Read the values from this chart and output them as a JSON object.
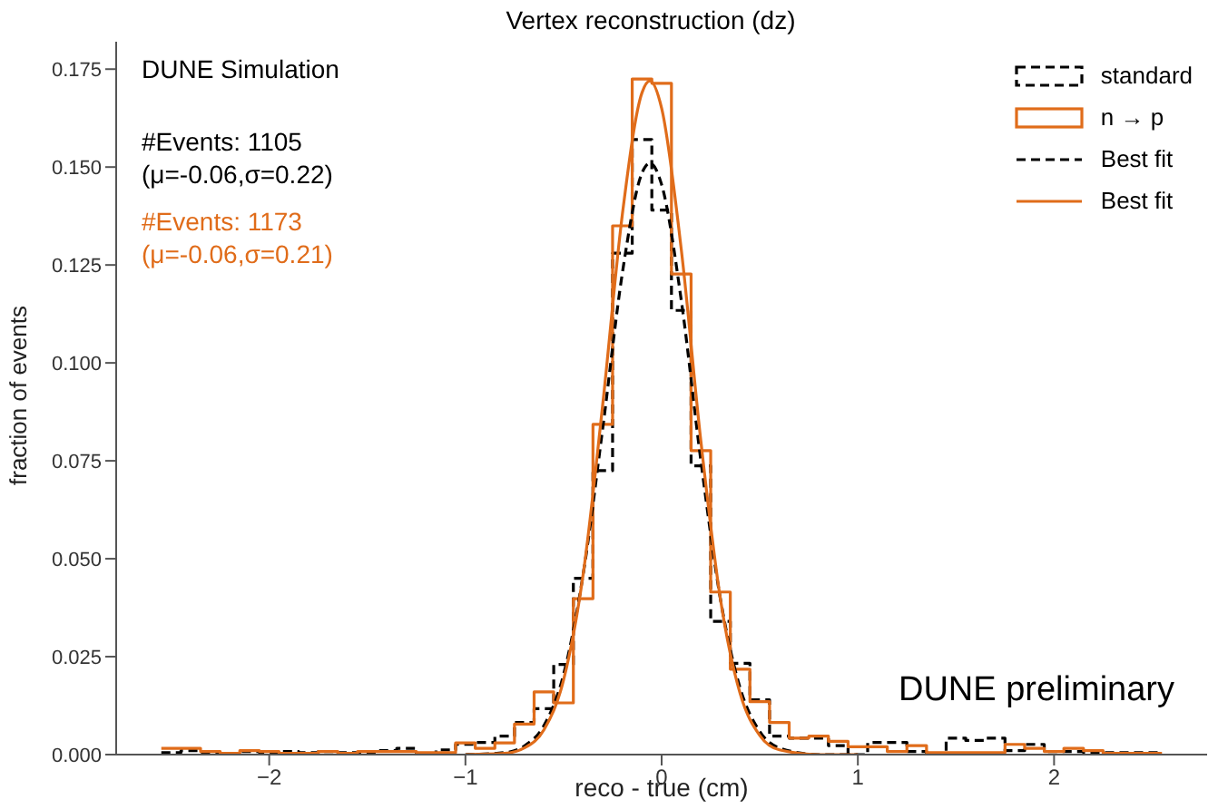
{
  "chart_data": {
    "type": "histogram",
    "title": "Vertex reconstruction (dz)",
    "xlabel": "reco - true (cm)",
    "ylabel": "fraction of events",
    "bins": [
      -2.55,
      -2.45,
      -2.35,
      -2.25,
      -2.15,
      -2.05,
      -1.95,
      -1.85,
      -1.75,
      -1.65,
      -1.55,
      -1.45,
      -1.35,
      -1.25,
      -1.15,
      -1.05,
      -0.95,
      -0.85,
      -0.75,
      -0.65,
      -0.55,
      -0.45,
      -0.35,
      -0.25,
      -0.15,
      -0.05,
      0.05,
      0.15,
      0.25,
      0.35,
      0.45,
      0.55,
      0.65,
      0.75,
      0.85,
      0.95,
      1.05,
      1.15,
      1.25,
      1.35,
      1.45,
      1.55,
      1.65,
      1.75,
      1.85,
      1.95,
      2.05,
      2.15,
      2.25,
      2.35,
      2.45,
      2.55
    ],
    "series": [
      {
        "name": "standard",
        "color": "#000000",
        "line_style": "dashed",
        "values": [
          0.0005,
          0.001,
          0.0005,
          0.0003,
          0.0008,
          0.0005,
          0.0008,
          0.0005,
          0.0008,
          0.0005,
          0.0005,
          0.001,
          0.0016,
          0.0003,
          0.0012,
          0.0026,
          0.0031,
          0.0047,
          0.0082,
          0.0117,
          0.023,
          0.045,
          0.0725,
          0.128,
          0.157,
          0.139,
          0.1134,
          0.0737,
          0.034,
          0.0233,
          0.014,
          0.0047,
          0.0042,
          0.0042,
          0.0023,
          0,
          0.0031,
          0.0031,
          0.0008,
          0.0003,
          0.0042,
          0.0036,
          0.0042,
          0.001,
          0.0026,
          0.0008,
          0.0008,
          0.0005,
          0.0005,
          0.0005,
          0.0005
        ]
      },
      {
        "name": "n → p",
        "color": "#e06c1a",
        "line_style": "solid",
        "values": [
          0.0016,
          0.0016,
          0.0008,
          0.0003,
          0.001,
          0.0008,
          0.0003,
          0.0003,
          0.0008,
          0.0003,
          0.0008,
          0.0008,
          0.0008,
          0.0005,
          0.0005,
          0.003,
          0.0016,
          0.003,
          0.0078,
          0.016,
          0.0132,
          0.0398,
          0.0843,
          0.135,
          0.1725,
          0.1714,
          0.1227,
          0.0776,
          0.0415,
          0.0218,
          0.0135,
          0.0082,
          0.0042,
          0.0047,
          0.0034,
          0.002,
          0.002,
          0.0008,
          0.0023,
          0.0005,
          0.0005,
          0.0005,
          0.0005,
          0.0026,
          0.0016,
          0.0008,
          0.0016,
          0.001,
          0.0003,
          0.0003,
          0.0003
        ]
      },
      {
        "name": "Best fit",
        "type": "line",
        "color": "#000000",
        "line_style": "dashed",
        "x": [
          -1.0,
          -0.8,
          -0.7,
          -0.6,
          -0.5,
          -0.4,
          -0.3,
          -0.2,
          -0.1,
          -0.06,
          0,
          0.1,
          0.2,
          0.3,
          0.4,
          0.5,
          0.6,
          0.8,
          1.0
        ],
        "values": [
          0,
          0.0005,
          0.0022,
          0.0074,
          0.0204,
          0.046,
          0.0834,
          0.123,
          0.1485,
          0.151,
          0.1455,
          0.116,
          0.075,
          0.0396,
          0.017,
          0.0059,
          0.0017,
          0,
          0
        ]
      },
      {
        "name": "Best fit",
        "type": "line",
        "color": "#e06c1a",
        "line_style": "solid",
        "x": [
          -1.0,
          -0.8,
          -0.7,
          -0.6,
          -0.5,
          -0.4,
          -0.3,
          -0.2,
          -0.1,
          -0.06,
          0,
          0.1,
          0.2,
          0.3,
          0.4,
          0.5,
          0.6,
          0.8,
          1.0
        ],
        "values": [
          0,
          0.0003,
          0.0017,
          0.0063,
          0.019,
          0.046,
          0.0895,
          0.138,
          0.169,
          0.172,
          0.165,
          0.129,
          0.08,
          0.0396,
          0.0156,
          0.0049,
          0.0012,
          0,
          0
        ]
      }
    ],
    "xlim": [
      -2.78,
      2.78
    ],
    "xticks": [
      {
        "value": -2,
        "label": "−2"
      },
      {
        "value": -1,
        "label": "−1"
      },
      0,
      1,
      2
    ],
    "ylim": [
      0,
      0.182
    ],
    "yticks": [
      {
        "value": 0,
        "label": "0.000"
      },
      {
        "value": 0.025,
        "label": "0.025"
      },
      {
        "value": 0.05,
        "label": "0.050"
      },
      {
        "value": 0.075,
        "label": "0.075"
      },
      {
        "value": 0.1,
        "label": "0.100"
      },
      {
        "value": 0.125,
        "label": "0.125"
      },
      {
        "value": 0.15,
        "label": "0.150"
      },
      {
        "value": 0.175,
        "label": "0.175"
      }
    ],
    "grid": false,
    "legend": "top right",
    "annotations": [
      "DUNE Simulation",
      "#Events: 1105",
      "(μ=-0.06,σ=0.22)",
      "#Events: 1173",
      "(μ=-0.06,σ=0.21)",
      "DUNE preliminary"
    ]
  }
}
